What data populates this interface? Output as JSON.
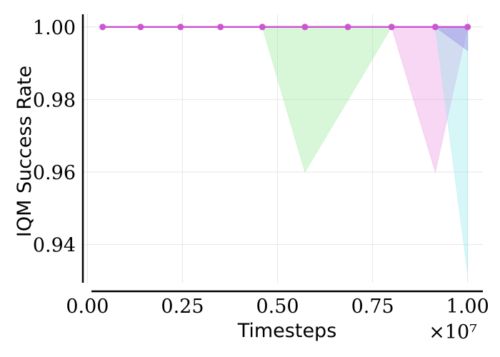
{
  "chart_data": {
    "type": "line",
    "xlabel": "Timesteps",
    "ylabel": "IQM Success Rate",
    "x_exponent_label": "×10⁷",
    "x_scale": 10000000,
    "xlim": [
      -0.012,
      1.04
    ],
    "ylim": [
      0.9295,
      1.0035
    ],
    "x_ticks": [
      0.0,
      0.25,
      0.5,
      0.75,
      1.0
    ],
    "x_tick_labels": [
      "0.00",
      "0.25",
      "0.50",
      "0.75",
      "1.00"
    ],
    "y_ticks": [
      0.94,
      0.96,
      0.98,
      1.0
    ],
    "y_tick_labels": [
      "0.94",
      "0.96",
      "0.98",
      "1.00"
    ],
    "grid": true,
    "series": [
      {
        "color": "#cc55d0",
        "x": [
          0.04,
          0.14,
          0.245,
          0.35,
          0.46,
          0.572,
          0.685,
          0.8,
          0.915,
          1.0
        ],
        "values": [
          1.0,
          1.0,
          1.0,
          1.0,
          1.0,
          1.0,
          1.0,
          1.0,
          1.0,
          1.0
        ]
      }
    ],
    "confidence_bands": [
      {
        "color": "#90e890",
        "opacity": 0.35,
        "x": [
          0.46,
          0.572,
          0.8
        ],
        "lower": [
          1.0,
          0.96,
          1.0
        ],
        "upper": [
          1.0,
          1.0,
          1.0
        ]
      },
      {
        "color": "#e88ce0",
        "opacity": 0.35,
        "x": [
          0.8,
          0.915,
          1.0
        ],
        "lower": [
          1.0,
          0.96,
          1.0
        ],
        "upper": [
          1.0,
          1.0,
          1.0
        ]
      },
      {
        "color": "#8ce4e8",
        "opacity": 0.35,
        "x": [
          0.915,
          1.0
        ],
        "lower": [
          1.0,
          0.932
        ],
        "upper": [
          1.0,
          1.0
        ]
      },
      {
        "color": "#9a8ce8",
        "opacity": 0.45,
        "x": [
          0.915,
          1.0
        ],
        "lower": [
          1.0,
          0.9935
        ],
        "upper": [
          1.0,
          1.0
        ]
      }
    ]
  }
}
